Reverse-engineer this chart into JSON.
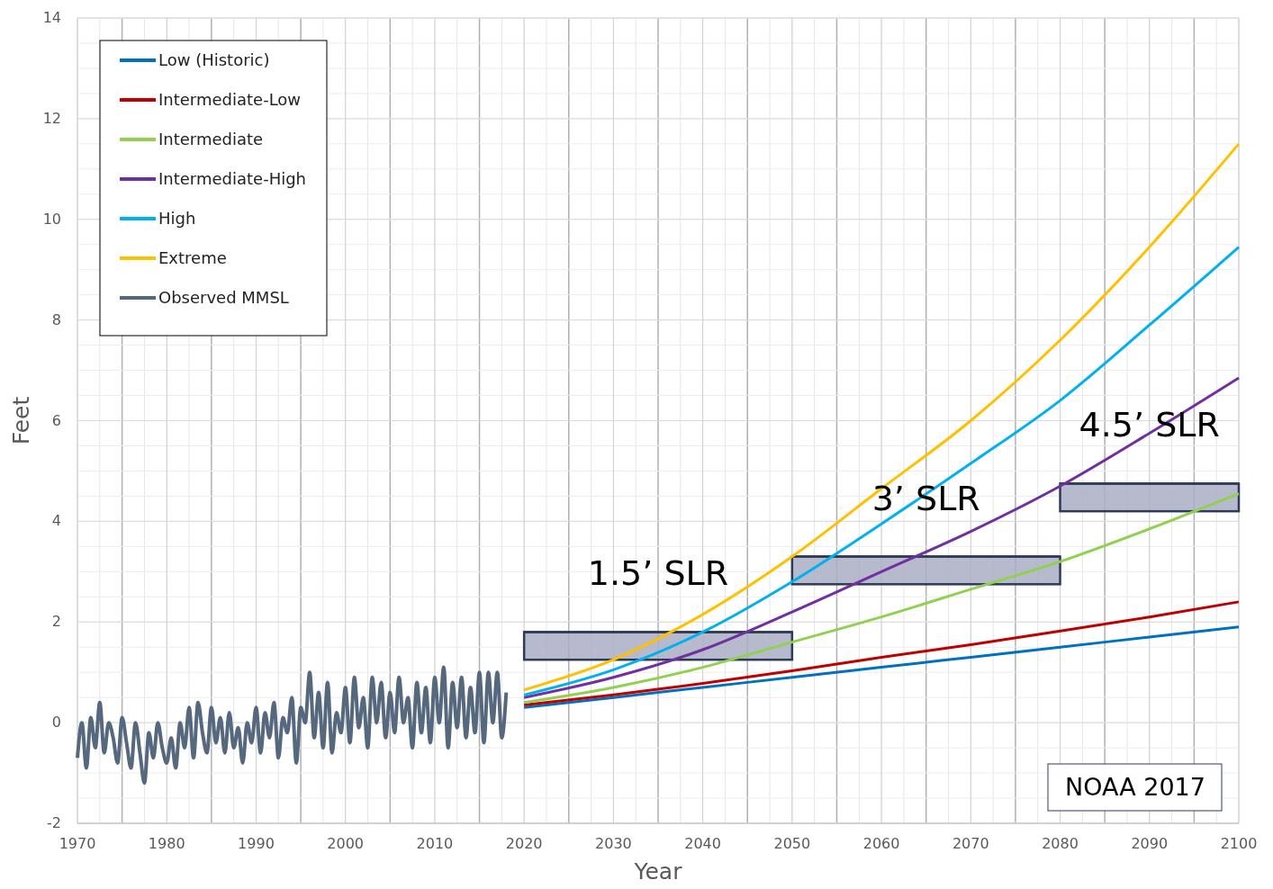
{
  "chart_data": {
    "type": "line",
    "xlabel": "Year",
    "ylabel": "Feet",
    "xlim": [
      1970,
      2100
    ],
    "ylim": [
      -2,
      14
    ],
    "xticks": [
      1970,
      1980,
      1990,
      2000,
      2010,
      2020,
      2030,
      2040,
      2050,
      2060,
      2070,
      2080,
      2090,
      2100
    ],
    "yticks": [
      -2,
      0,
      2,
      4,
      6,
      8,
      10,
      12,
      14
    ],
    "grid": true,
    "legend": "top left",
    "line_style": "solid",
    "marker": "none",
    "series": [
      {
        "name": "Low (Historic)",
        "color": "#0070c0",
        "x": [
          2020,
          2030,
          2040,
          2050,
          2060,
          2070,
          2080,
          2090,
          2100
        ],
        "values": [
          0.3,
          0.5,
          0.7,
          0.9,
          1.1,
          1.3,
          1.5,
          1.7,
          1.9
        ]
      },
      {
        "name": "Intermediate-Low",
        "color": "#c00000",
        "x": [
          2020,
          2030,
          2040,
          2050,
          2060,
          2070,
          2080,
          2090,
          2100
        ],
        "values": [
          0.35,
          0.55,
          0.78,
          1.03,
          1.3,
          1.55,
          1.82,
          2.1,
          2.4
        ]
      },
      {
        "name": "Intermediate",
        "color": "#92d050",
        "x": [
          2020,
          2030,
          2040,
          2050,
          2060,
          2070,
          2080,
          2090,
          2100
        ],
        "values": [
          0.4,
          0.7,
          1.1,
          1.6,
          2.1,
          2.65,
          3.2,
          3.85,
          4.55
        ]
      },
      {
        "name": "Intermediate-High",
        "color": "#7030a0",
        "x": [
          2020,
          2030,
          2040,
          2050,
          2060,
          2070,
          2080,
          2090,
          2100
        ],
        "values": [
          0.5,
          0.9,
          1.45,
          2.2,
          3.0,
          3.8,
          4.7,
          5.75,
          6.85
        ]
      },
      {
        "name": "High",
        "color": "#00b0f0",
        "x": [
          2020,
          2030,
          2040,
          2050,
          2060,
          2070,
          2080,
          2090,
          2100
        ],
        "values": [
          0.55,
          1.05,
          1.8,
          2.8,
          3.95,
          5.15,
          6.4,
          7.9,
          9.45
        ]
      },
      {
        "name": "Extreme",
        "color": "#ffc000",
        "x": [
          2020,
          2030,
          2040,
          2050,
          2060,
          2070,
          2080,
          2090,
          2100
        ],
        "values": [
          0.65,
          1.25,
          2.15,
          3.3,
          4.65,
          6.0,
          7.6,
          9.45,
          11.5
        ]
      },
      {
        "type": "bar",
        "color": "#a9aec3",
        "x": [
          2035,
          2065,
          2090
        ],
        "xerrors": [
          15,
          15,
          10
        ],
        "base": [
          1.25,
          2.75,
          4.2
        ],
        "values": [
          0.55,
          0.55,
          0.55
        ]
      },
      {
        "name": "Observed MMSL",
        "color": "#56687e",
        "x": [
          1970,
          1970.5,
          1971,
          1971.5,
          1972,
          1972.5,
          1973,
          1973.5,
          1974,
          1974.5,
          1975,
          1975.5,
          1976,
          1976.5,
          1977,
          1977.5,
          1978,
          1978.5,
          1979,
          1979.5,
          1980,
          1980.5,
          1981,
          1981.5,
          1982,
          1982.5,
          1983,
          1983.5,
          1984,
          1984.5,
          1985,
          1985.5,
          1986,
          1986.5,
          1987,
          1987.5,
          1988,
          1988.5,
          1989,
          1989.5,
          1990,
          1990.5,
          1991,
          1991.5,
          1992,
          1992.5,
          1993,
          1993.5,
          1994,
          1994.5,
          1995,
          1995.5,
          1996,
          1996.5,
          1997,
          1997.5,
          1998,
          1998.5,
          1999,
          1999.5,
          2000,
          2000.5,
          2001,
          2001.5,
          2002,
          2002.5,
          2003,
          2003.5,
          2004,
          2004.5,
          2005,
          2005.5,
          2006,
          2006.5,
          2007,
          2007.5,
          2008,
          2008.5,
          2009,
          2009.5,
          2010,
          2010.5,
          2011,
          2011.5,
          2012,
          2012.5,
          2013,
          2013.5,
          2014,
          2014.5,
          2015,
          2015.5,
          2016,
          2016.5,
          2017,
          2017.5,
          2018
        ],
        "values": [
          -0.7,
          0.0,
          -0.9,
          0.1,
          -0.5,
          0.4,
          -0.6,
          0.0,
          -0.3,
          -0.8,
          0.1,
          -0.4,
          -0.9,
          0.0,
          -0.6,
          -1.2,
          -0.2,
          -0.7,
          0.0,
          -0.5,
          -0.8,
          -0.3,
          -0.9,
          0.0,
          -0.5,
          0.3,
          -0.7,
          0.4,
          -0.2,
          -0.6,
          0.3,
          -0.4,
          0.1,
          -0.6,
          0.2,
          -0.5,
          -0.1,
          -0.8,
          0.0,
          -0.4,
          0.3,
          -0.6,
          0.2,
          -0.3,
          0.4,
          -0.7,
          0.1,
          -0.2,
          0.5,
          -0.8,
          0.3,
          0.0,
          1.0,
          -0.3,
          0.6,
          -0.5,
          0.8,
          -0.6,
          0.2,
          -0.2,
          0.7,
          -0.4,
          0.9,
          -0.1,
          0.5,
          -0.5,
          0.9,
          0.0,
          0.8,
          -0.3,
          0.6,
          -0.2,
          0.9,
          0.0,
          0.5,
          -0.5,
          0.8,
          -0.2,
          0.7,
          -0.4,
          0.9,
          0.0,
          1.1,
          -0.5,
          0.8,
          -0.1,
          0.9,
          -0.3,
          0.7,
          -0.2,
          1.0,
          -0.4,
          1.0,
          0.0,
          1.0,
          -0.3,
          0.6
        ]
      }
    ],
    "annotations": [
      "1.5’ SLR",
      "3’ SLR",
      "4.5’ SLR",
      "NOAA 2017"
    ]
  }
}
